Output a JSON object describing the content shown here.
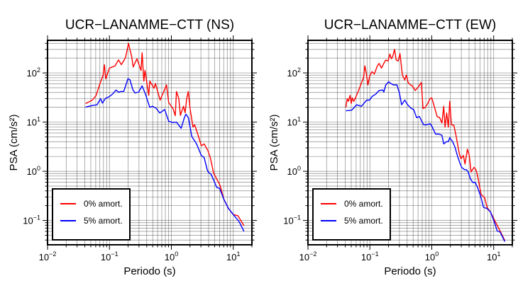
{
  "chart_data": [
    {
      "type": "line",
      "title": "UCR−LANAMME−CTT (NS)",
      "xlabel": "Periodo (s)",
      "ylabel": "PSA (cm/s²)",
      "xscale": "log",
      "yscale": "log",
      "xlim": [
        0.01,
        20
      ],
      "ylim": [
        0.032,
        460
      ],
      "grid": true,
      "x_ticks": [
        {
          "value": 0.01,
          "base": "10",
          "exp": "−2"
        },
        {
          "value": 0.1,
          "base": "10",
          "exp": "−1"
        },
        {
          "value": 1,
          "base": "10",
          "exp": "0"
        },
        {
          "value": 10,
          "base": "10",
          "exp": "1"
        }
      ],
      "y_ticks": [
        {
          "value": 0.1,
          "base": "10",
          "exp": "−1"
        },
        {
          "value": 1,
          "base": "10",
          "exp": "0"
        },
        {
          "value": 10,
          "base": "10",
          "exp": "1"
        },
        {
          "value": 100,
          "base": "10",
          "exp": "2"
        }
      ],
      "legend_position": "bottom-left",
      "series": [
        {
          "name": "0% amort.",
          "color": "#ff0000",
          "x": [
            0.041,
            0.053,
            0.061,
            0.069,
            0.079,
            0.083,
            0.087,
            0.1,
            0.123,
            0.14,
            0.156,
            0.182,
            0.203,
            0.228,
            0.242,
            0.278,
            0.323,
            0.337,
            0.359,
            0.375,
            0.431,
            0.448,
            0.525,
            0.552,
            0.659,
            0.836,
            0.904,
            1.06,
            1.156,
            1.21,
            1.32,
            1.4,
            1.57,
            1.67,
            1.77,
            1.88,
            2.0,
            2.24,
            2.38,
            2.67,
            3.05,
            3.39,
            3.9,
            4.26,
            4.81,
            5.4,
            6.15,
            7.03,
            8.38,
            9.98,
            11.9,
            14.9
          ],
          "y": [
            23.8,
            28,
            35,
            57,
            90,
            147,
            76,
            125,
            139,
            184,
            147,
            205,
            398,
            217,
            132,
            194,
            112,
            256,
            68,
            112,
            35,
            68,
            49,
            61,
            28,
            57,
            25,
            19,
            13.5,
            42,
            30,
            13.7,
            21,
            15.5,
            30,
            42,
            19,
            7.9,
            8.8,
            5.7,
            3.3,
            3.6,
            2.6,
            1.9,
            0.92,
            0.7,
            0.51,
            0.27,
            0.175,
            0.132,
            0.125,
            0.078
          ]
        },
        {
          "name": "5% amort.",
          "color": "#0000ff",
          "x": [
            0.041,
            0.053,
            0.063,
            0.072,
            0.077,
            0.086,
            0.1,
            0.112,
            0.128,
            0.14,
            0.153,
            0.17,
            0.199,
            0.214,
            0.238,
            0.259,
            0.296,
            0.337,
            0.382,
            0.416,
            0.448,
            0.5,
            0.57,
            0.65,
            0.78,
            0.904,
            1.06,
            1.21,
            1.44,
            1.62,
            1.72,
            1.88,
            2.14,
            2.55,
            3.05,
            3.39,
            3.79,
            3.96,
            4.35,
            4.73,
            5.4,
            6.02,
            7.03,
            8.38,
            9.98,
            12.4,
            14.9
          ],
          "y": [
            20.2,
            21.8,
            22.5,
            30,
            24.3,
            30.3,
            33,
            37,
            45,
            40.5,
            42,
            42,
            76,
            73,
            46,
            39,
            41,
            54.5,
            37,
            26.5,
            20,
            21,
            19,
            15.3,
            18,
            10.4,
            9.8,
            10,
            7.5,
            12.3,
            14.5,
            12.3,
            5.1,
            3.6,
            2.1,
            1.9,
            1.08,
            0.95,
            0.885,
            0.7,
            0.47,
            0.45,
            0.27,
            0.175,
            0.132,
            0.095,
            0.06
          ]
        }
      ]
    },
    {
      "type": "line",
      "title": "UCR−LANAMME−CTT (EW)",
      "xlabel": "Periodo (s)",
      "ylabel": "PSA (cm/s²)",
      "xscale": "log",
      "yscale": "log",
      "xlim": [
        0.01,
        20
      ],
      "ylim": [
        0.032,
        460
      ],
      "grid": true,
      "x_ticks": [
        {
          "value": 0.01,
          "base": "10",
          "exp": "−2"
        },
        {
          "value": 0.1,
          "base": "10",
          "exp": "−1"
        },
        {
          "value": 1,
          "base": "10",
          "exp": "0"
        },
        {
          "value": 10,
          "base": "10",
          "exp": "1"
        }
      ],
      "y_ticks": [
        {
          "value": 0.1,
          "base": "10",
          "exp": "−1"
        },
        {
          "value": 1,
          "base": "10",
          "exp": "0"
        },
        {
          "value": 10,
          "base": "10",
          "exp": "1"
        },
        {
          "value": 100,
          "base": "10",
          "exp": "2"
        }
      ],
      "legend_position": "bottom-left",
      "series": [
        {
          "name": "0% amort.",
          "color": "#ff0000",
          "x": [
            0.041,
            0.043,
            0.045,
            0.048,
            0.05,
            0.052,
            0.055,
            0.061,
            0.068,
            0.075,
            0.079,
            0.083,
            0.088,
            0.093,
            0.099,
            0.108,
            0.118,
            0.132,
            0.141,
            0.154,
            0.168,
            0.181,
            0.197,
            0.21,
            0.223,
            0.234,
            0.25,
            0.266,
            0.286,
            0.307,
            0.335,
            0.366,
            0.389,
            0.414,
            0.452,
            0.485,
            0.54,
            0.605,
            0.678,
            0.721,
            0.788,
            0.861,
            0.94,
            1.0,
            1.12,
            1.22,
            1.34,
            1.46,
            1.56,
            1.64,
            1.74,
            1.85,
            1.95,
            2.08,
            2.27,
            2.48,
            2.78,
            2.96,
            3.24,
            3.44,
            3.76,
            4.03,
            4.32,
            4.81,
            5.16,
            5.49,
            6.27,
            7.15,
            7.81,
            8.9,
            10.6,
            12.7,
            15.1
          ],
          "y": [
            20,
            30,
            26.5,
            35,
            24,
            31,
            26.5,
            35,
            49,
            68,
            80,
            139,
            95,
            57,
            85,
            106,
            95,
            139,
            156,
            125,
            156,
            184,
            174,
            242,
            194,
            217,
            302,
            184,
            174,
            247,
            90,
            72,
            90,
            64,
            57,
            54.5,
            44,
            52,
            64,
            19,
            20,
            24,
            30,
            31,
            19,
            13,
            12.3,
            9.6,
            21,
            7.9,
            15.3,
            7.9,
            26.5,
            8.8,
            8.6,
            5.1,
            2.3,
            1.8,
            2.1,
            1.4,
            2.8,
            2.1,
            0.97,
            1.2,
            1.08,
            0.82,
            0.34,
            0.29,
            0.185,
            0.148,
            0.095,
            0.061,
            0.039
          ]
        },
        {
          "name": "5% amort.",
          "color": "#0000ff",
          "x": [
            0.041,
            0.051,
            0.061,
            0.073,
            0.089,
            0.099,
            0.108,
            0.124,
            0.141,
            0.161,
            0.168,
            0.181,
            0.201,
            0.219,
            0.239,
            0.274,
            0.3,
            0.326,
            0.366,
            0.408,
            0.464,
            0.51,
            0.569,
            0.632,
            0.69,
            0.741,
            0.824,
            0.94,
            1.0,
            1.15,
            1.3,
            1.46,
            1.56,
            1.74,
            1.85,
            1.95,
            2.17,
            2.37,
            2.59,
            2.83,
            3.04,
            3.38,
            3.63,
            3.86,
            4.22,
            4.6,
            5.0,
            5.49,
            6.27,
            6.84,
            7.81,
            8.9,
            10.2,
            11.4,
            12.7,
            15.1
          ],
          "y": [
            17,
            17.5,
            22.5,
            21,
            28,
            28,
            33,
            37,
            44,
            45,
            41,
            57,
            66,
            61,
            57,
            57,
            39,
            22.5,
            28,
            22.5,
            19,
            18,
            12.3,
            13,
            10.4,
            8.8,
            8.8,
            9.3,
            8.3,
            5.7,
            5.7,
            5.4,
            3.6,
            4.0,
            4.0,
            4.8,
            4.0,
            3.1,
            2.1,
            1.5,
            1.2,
            1.08,
            1.08,
            0.97,
            0.7,
            0.59,
            0.6,
            0.47,
            0.29,
            0.185,
            0.175,
            0.148,
            0.095,
            0.061,
            0.058,
            0.037
          ]
        }
      ]
    }
  ]
}
